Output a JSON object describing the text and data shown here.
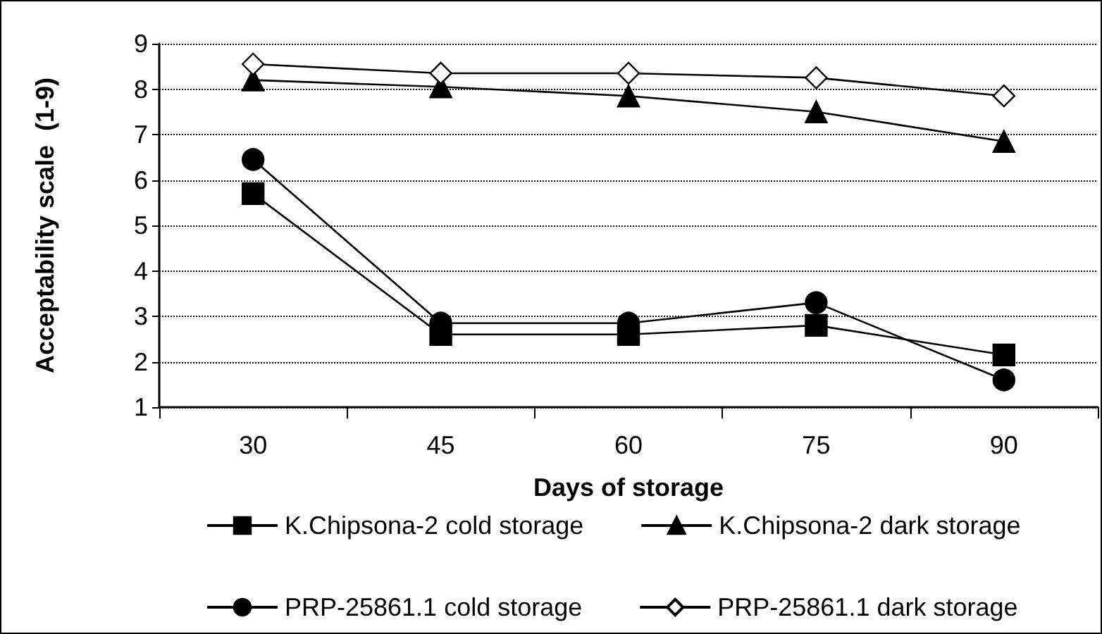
{
  "chart_data": {
    "type": "line",
    "xlabel": "Days of storage",
    "ylabel": "Acceptability scale  (1-9)",
    "categories": [
      "30",
      "45",
      "60",
      "75",
      "90"
    ],
    "series": [
      {
        "name": "K.Chipsona-2 cold storage",
        "color": "#000000",
        "marker": "square",
        "values": [
          5.7,
          2.6,
          2.6,
          2.8,
          2.15
        ]
      },
      {
        "name": "K.Chipsona-2 dark storage",
        "color": "#000000",
        "marker": "triangle",
        "values": [
          8.2,
          8.05,
          7.85,
          7.5,
          6.85
        ]
      },
      {
        "name": "PRP-25861.1 cold storage",
        "color": "#000000",
        "marker": "circle",
        "values": [
          6.45,
          2.85,
          2.85,
          3.3,
          1.6
        ]
      },
      {
        "name": "PRP-25861.1 dark storage",
        "color": "#ffffff",
        "marker": "diamond",
        "values": [
          8.55,
          8.35,
          8.35,
          8.25,
          7.85
        ]
      }
    ],
    "ylim": [
      1,
      9
    ],
    "yticks": [
      1,
      2,
      3,
      4,
      5,
      6,
      7,
      8,
      9
    ],
    "grid": "y",
    "legend": "bottom",
    "line_style": "solid"
  }
}
